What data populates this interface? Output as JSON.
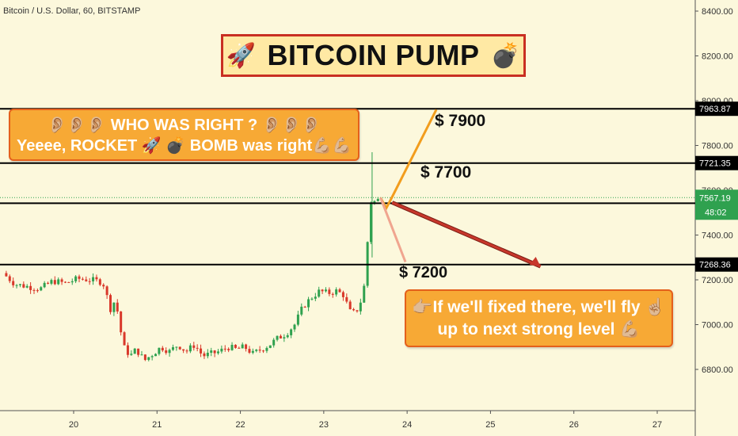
{
  "header": {
    "symbol_title": "Bitcoin / U.S. Dollar, 60, BITSTAMP"
  },
  "banner": {
    "rocket_icon": "🚀",
    "text": "BITCOIN PUMP",
    "bomb_icon": "💣"
  },
  "callout_top": {
    "line1": "👂🏼👂🏼👂🏼  WHO WAS RIGHT ? 👂🏼👂🏼👂🏼",
    "line2": "Yeeee, ROCKET 🚀 💣 BOMB was right💪🏼💪🏼"
  },
  "callout_bottom": {
    "line1": "👉🏼If we'll fixed there, we'll fly ☝🏼",
    "line2": "up to next strong level 💪🏼"
  },
  "targets": {
    "t7900": "$ 7900",
    "t7700": "$ 7700",
    "t7200": "$ 7200"
  },
  "chart_data": {
    "type": "candlestick",
    "symbol": "Bitcoin / U.S. Dollar, 60, BITSTAMP",
    "x_ticks": [
      "20",
      "21",
      "22",
      "23",
      "24",
      "25",
      "26",
      "27"
    ],
    "y_ticks": [
      "6800.00",
      "7000.00",
      "7200.00",
      "7400.00",
      "7600.00",
      "7800.00",
      "8000.00",
      "8200.00",
      "8400.00"
    ],
    "ylim": [
      6540,
      8460
    ],
    "xlim": [
      19.15,
      27.4
    ],
    "horizontal_levels": [
      {
        "value": 7963.87,
        "label": "7963.87"
      },
      {
        "value": 7721.35,
        "label": "7721.35"
      },
      {
        "value": 7542.1,
        "label": "7542.10"
      },
      {
        "value": 7268.36,
        "label": "7268.36"
      }
    ],
    "last_price": {
      "value": 7567.19,
      "label": "7567.19",
      "countdown": "48:02"
    },
    "price_path": [
      [
        19.15,
        7230
      ],
      [
        19.3,
        7180
      ],
      [
        19.45,
        7170
      ],
      [
        19.6,
        7160
      ],
      [
        19.75,
        7195
      ],
      [
        19.9,
        7185
      ],
      [
        20.05,
        7205
      ],
      [
        20.2,
        7200
      ],
      [
        20.35,
        7190
      ],
      [
        20.45,
        7060
      ],
      [
        20.5,
        7120
      ],
      [
        20.55,
        7000
      ],
      [
        20.6,
        6900
      ],
      [
        20.68,
        6860
      ],
      [
        20.75,
        6890
      ],
      [
        20.85,
        6840
      ],
      [
        20.95,
        6870
      ],
      [
        21.05,
        6900
      ],
      [
        21.15,
        6880
      ],
      [
        21.25,
        6910
      ],
      [
        21.35,
        6880
      ],
      [
        21.45,
        6910
      ],
      [
        21.55,
        6860
      ],
      [
        21.65,
        6870
      ],
      [
        21.75,
        6880
      ],
      [
        21.85,
        6900
      ],
      [
        21.95,
        6890
      ],
      [
        22.05,
        6900
      ],
      [
        22.15,
        6870
      ],
      [
        22.25,
        6890
      ],
      [
        22.35,
        6910
      ],
      [
        22.45,
        6940
      ],
      [
        22.55,
        6960
      ],
      [
        22.65,
        7000
      ],
      [
        22.75,
        7080
      ],
      [
        22.85,
        7120
      ],
      [
        22.95,
        7150
      ],
      [
        23.05,
        7140
      ],
      [
        23.15,
        7150
      ],
      [
        23.25,
        7130
      ],
      [
        23.3,
        7060
      ],
      [
        23.38,
        7050
      ],
      [
        23.45,
        7110
      ],
      [
        23.5,
        7200
      ],
      [
        23.55,
        7540
      ],
      [
        23.58,
        7560
      ],
      [
        23.62,
        7545
      ],
      [
        23.68,
        7567
      ]
    ],
    "projections": [
      {
        "label": "$ 7900",
        "points": [
          [
            23.68,
            7567
          ],
          [
            23.75,
            7520
          ],
          [
            23.82,
            7570
          ],
          [
            24.35,
            7960
          ]
        ]
      },
      {
        "label": "$ 7200",
        "points": [
          [
            23.68,
            7567
          ],
          [
            23.98,
            7280
          ]
        ]
      },
      {
        "label": "arrow",
        "points": [
          [
            23.82,
            7545
          ],
          [
            25.6,
            7260
          ]
        ]
      }
    ],
    "colors": {
      "up": "#2fa14f",
      "down": "#d9382a",
      "background": "#fcf8dc",
      "level": "#000000",
      "projection": "#f29d1d",
      "arrow": "#c7372b"
    }
  }
}
